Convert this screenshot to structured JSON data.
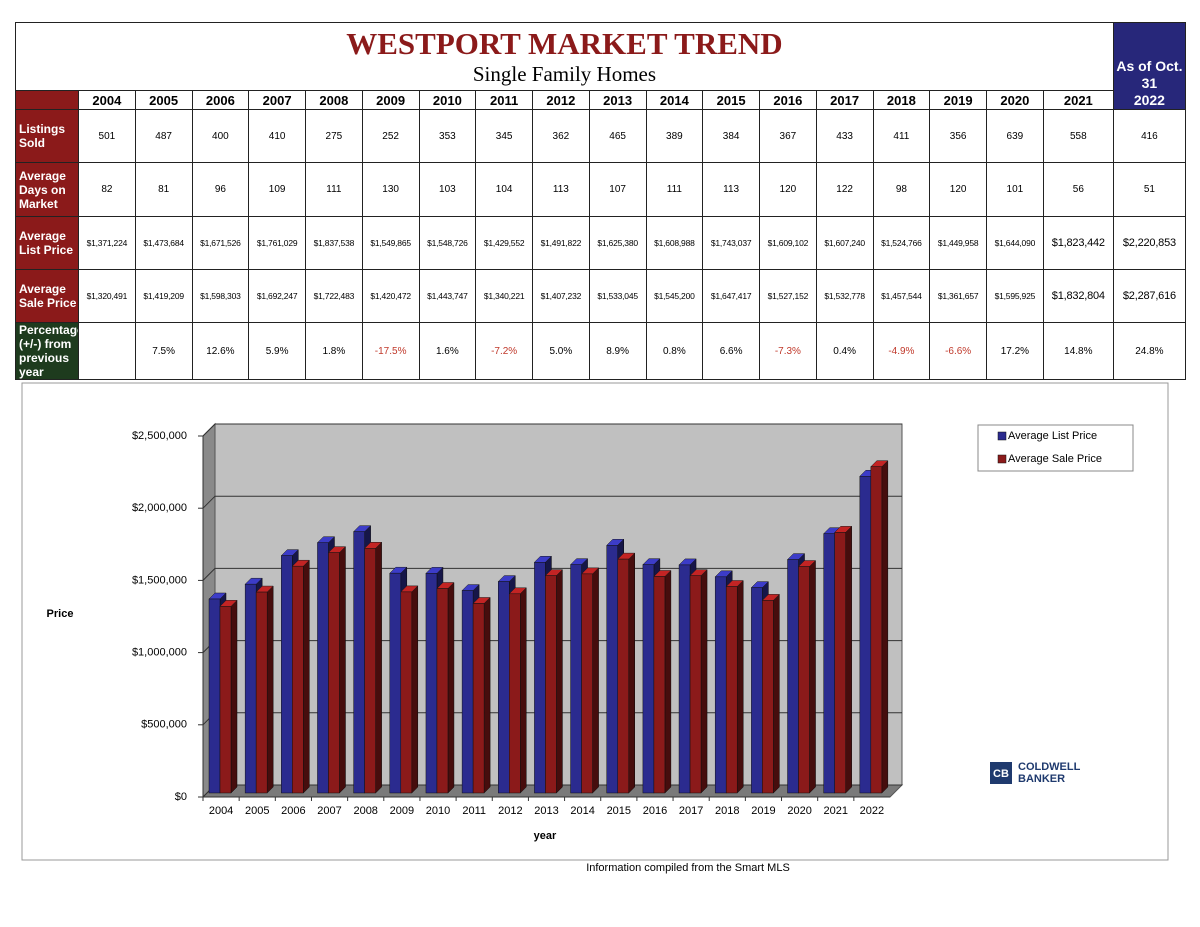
{
  "table": {
    "title": "WESTPORT MARKET TREND",
    "subtitle": "Single Family Homes",
    "as_of": "As of Oct. 31",
    "columns": [
      "2004",
      "2005",
      "2006",
      "2007",
      "2008",
      "2009",
      "2010",
      "2011",
      "2012",
      "2013",
      "2014",
      "2015",
      "2016",
      "2017",
      "2018",
      "2019",
      "2020",
      "2021",
      "2022"
    ],
    "rows": [
      {
        "label": "Listings Sold",
        "cells": [
          "501",
          "487",
          "400",
          "410",
          "275",
          "252",
          "353",
          "345",
          "362",
          "465",
          "389",
          "384",
          "367",
          "433",
          "411",
          "356",
          "639",
          "558",
          "416"
        ]
      },
      {
        "label": "Average Days on Market",
        "cells": [
          "82",
          "81",
          "96",
          "109",
          "111",
          "130",
          "103",
          "104",
          "113",
          "107",
          "111",
          "113",
          "120",
          "122",
          "98",
          "120",
          "101",
          "56",
          "51"
        ]
      },
      {
        "label": "Average List Price",
        "cells": [
          "$1,371,224",
          "$1,473,684",
          "$1,671,526",
          "$1,761,029",
          "$1,837,538",
          "$1,549,865",
          "$1,548,726",
          "$1,429,552",
          "$1,491,822",
          "$1,625,380",
          "$1,608,988",
          "$1,743,037",
          "$1,609,102",
          "$1,607,240",
          "$1,524,766",
          "$1,449,958",
          "$1,644,090",
          "$1,823,442",
          "$2,220,853"
        ]
      },
      {
        "label": "Average Sale Price",
        "cells": [
          "$1,320,491",
          "$1,419,209",
          "$1,598,303",
          "$1,692,247",
          "$1,722,483",
          "$1,420,472",
          "$1,443,747",
          "$1,340,221",
          "$1,407,232",
          "$1,533,045",
          "$1,545,200",
          "$1,647,417",
          "$1,527,152",
          "$1,532,778",
          "$1,457,544",
          "$1,361,657",
          "$1,595,925",
          "$1,832,804",
          "$2,287,616"
        ]
      },
      {
        "label": "Percentage (+/-) from previous year",
        "cells": [
          null,
          "7.5%",
          "12.6%",
          "5.9%",
          "1.8%",
          "-17.5%",
          "1.6%",
          "-7.2%",
          "5.0%",
          "8.9%",
          "0.8%",
          "6.6%",
          "-7.3%",
          "0.4%",
          "-4.9%",
          "-6.6%",
          "17.2%",
          "14.8%",
          "24.8%"
        ]
      }
    ]
  },
  "chart_data": {
    "type": "bar",
    "y_label": "Price",
    "x_label": "year",
    "categories": [
      "2004",
      "2005",
      "2006",
      "2007",
      "2008",
      "2009",
      "2010",
      "2011",
      "2012",
      "2013",
      "2014",
      "2015",
      "2016",
      "2017",
      "2018",
      "2019",
      "2020",
      "2021",
      "2022"
    ],
    "series": [
      {
        "name": "Average List Price",
        "color": "#2b2b8f",
        "values": [
          1371224,
          1473684,
          1671526,
          1761029,
          1837538,
          1549865,
          1548726,
          1429552,
          1491822,
          1625380,
          1608988,
          1743037,
          1609102,
          1607240,
          1524766,
          1449958,
          1644090,
          1823442,
          2220853
        ]
      },
      {
        "name": "Average Sale Price",
        "color": "#8b1a1a",
        "values": [
          1320491,
          1419209,
          1598303,
          1692247,
          1722483,
          1420472,
          1443747,
          1340221,
          1407232,
          1533045,
          1545200,
          1647417,
          1527152,
          1532778,
          1457544,
          1361657,
          1595925,
          1832804,
          2287616
        ]
      }
    ],
    "ylim": [
      0,
      2500000
    ],
    "yticks": [
      {
        "value": 0,
        "label": "$0"
      },
      {
        "value": 500000,
        "label": "$500,000"
      },
      {
        "value": 1000000,
        "label": "$1,000,000"
      },
      {
        "value": 1500000,
        "label": "$1,500,000"
      },
      {
        "value": 2000000,
        "label": "$2,000,000"
      },
      {
        "value": 2500000,
        "label": "$2,500,000"
      }
    ],
    "grid": true,
    "legend": "upper right"
  },
  "footer": {
    "source": "Information compiled from the Smart MLS",
    "logo": [
      "COLDWELL",
      "BANKER"
    ]
  }
}
